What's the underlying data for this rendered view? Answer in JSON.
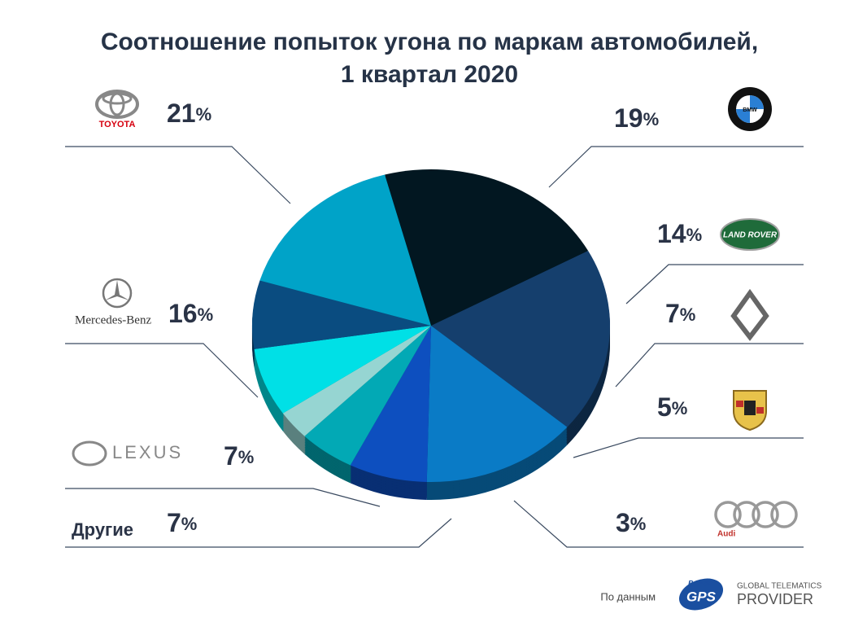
{
  "chart_data": {
    "type": "pie",
    "title": "Соотношение попыток угона по маркам автомобилей,",
    "subtitle": "1 квартал 2020",
    "categories": [
      "TOYOTA",
      "BMW",
      "LAND ROVER",
      null,
      null,
      "Audi",
      "Другие",
      "LEXUS",
      "Mercedes-Benz"
    ],
    "values": [
      21,
      19,
      14,
      7,
      5,
      3,
      7,
      7,
      16
    ],
    "value_labels": [
      "21%",
      "19%",
      "14%",
      "7%",
      "5%",
      "3%",
      "7%",
      "7%",
      "16%"
    ],
    "colors": [
      "#021721",
      "#153f6d",
      "#0a7bc6",
      "#0d4fbf",
      "#02a9b5",
      "#96d5d2",
      "#00e0e6",
      "#0a4c80",
      "#00a3c8"
    ],
    "source": {
      "prefix": "По данным",
      "brand": "GPS",
      "brand_small": "Benish",
      "tagline": "GLOBAL TELEMATICS",
      "tagline2": "PROVIDER"
    }
  }
}
